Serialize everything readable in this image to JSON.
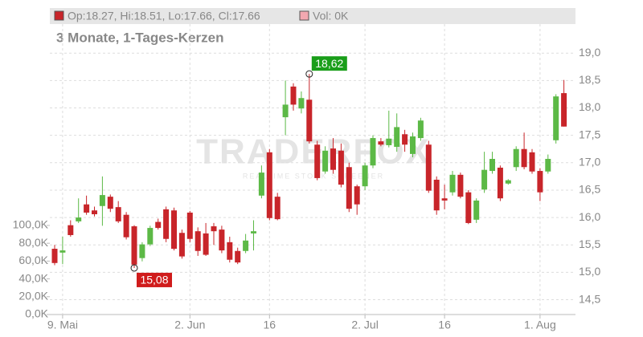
{
  "chart_data": {
    "type": "candlestick",
    "header": {
      "ohlc": "Op:18.27, Hi:18.51, Lo:17.66, Cl:17.66",
      "volume": "Vol: 0K"
    },
    "title": "3 Monate, 1-Tages-Kerzen",
    "watermark": {
      "brand": "TRADERFOX",
      "tagline": "REALTIME STOCK SCREENER"
    },
    "categories": [
      null,
      "9. Mai",
      null,
      null,
      null,
      null,
      null,
      null,
      null,
      null,
      null,
      null,
      null,
      null,
      null,
      null,
      null,
      "2. Jun",
      null,
      null,
      null,
      null,
      null,
      null,
      null,
      null,
      null,
      "16",
      null,
      null,
      null,
      null,
      null,
      null,
      null,
      null,
      null,
      null,
      null,
      "2. Jul",
      null,
      null,
      null,
      null,
      null,
      null,
      null,
      null,
      null,
      "16",
      null,
      null,
      null,
      null,
      null,
      null,
      null,
      null,
      null,
      null,
      null,
      "1. Aug",
      null,
      null,
      null
    ],
    "open": [
      15.43,
      15.36,
      15.86,
      15.93,
      16.24,
      16.13,
      16.21,
      16.38,
      16.19,
      16.05,
      15.84,
      15.26,
      15.51,
      15.92,
      16.15,
      16.13,
      15.72,
      16.09,
      15.75,
      15.71,
      15.84,
      15.78,
      15.55,
      15.39,
      15.39,
      15.71,
      16.4,
      17.19,
      16.38,
      17.83,
      18.39,
      17.99,
      18.15,
      17.33,
      16.84,
      17.26,
      17.22,
      16.92,
      16.57,
      16.57,
      16.95,
      17.39,
      17.32,
      17.29,
      17.52,
      17.16,
      17.45,
      17.33,
      16.69,
      16.35,
      16.46,
      16.78,
      16.46,
      15.96,
      16.51,
      16.85,
      16.91,
      16.62,
      16.92,
      17.25,
      17.19,
      16.85,
      16.84,
      17.41,
      18.27
    ],
    "high": [
      15.5,
      15.65,
      15.95,
      16.35,
      16.4,
      16.2,
      16.75,
      16.42,
      16.3,
      16.1,
      15.86,
      15.55,
      15.85,
      15.98,
      16.2,
      16.18,
      15.78,
      16.12,
      15.82,
      15.9,
      15.9,
      15.85,
      15.65,
      15.45,
      15.7,
      15.95,
      16.95,
      17.25,
      16.45,
      18.5,
      18.45,
      18.3,
      18.62,
      17.4,
      17.3,
      17.45,
      17.35,
      17.0,
      16.6,
      17.0,
      17.5,
      17.45,
      17.95,
      17.9,
      17.6,
      17.55,
      17.82,
      17.4,
      16.75,
      16.6,
      16.85,
      16.82,
      16.5,
      16.35,
      17.2,
      17.2,
      16.95,
      16.7,
      17.3,
      17.55,
      17.25,
      16.9,
      17.15,
      18.25,
      18.51
    ],
    "low": [
      15.13,
      15.15,
      15.65,
      15.9,
      16.05,
      16.02,
      15.85,
      16.1,
      15.9,
      15.6,
      15.08,
      15.2,
      15.48,
      15.78,
      15.55,
      15.4,
      15.25,
      15.55,
      15.3,
      15.3,
      15.5,
      15.35,
      15.18,
      15.15,
      15.35,
      15.4,
      16.35,
      15.95,
      15.95,
      17.5,
      17.95,
      17.9,
      17.35,
      16.68,
      16.8,
      16.8,
      16.55,
      16.1,
      16.05,
      16.5,
      16.9,
      17.3,
      17.28,
      17.2,
      17.2,
      17.1,
      17.4,
      16.45,
      16.05,
      16.15,
      16.4,
      16.35,
      15.88,
      15.9,
      16.45,
      16.8,
      16.3,
      16.6,
      16.85,
      16.88,
      16.8,
      16.3,
      16.8,
      17.35,
      17.66
    ],
    "close": [
      15.17,
      15.4,
      15.68,
      16.0,
      16.09,
      16.06,
      16.41,
      16.16,
      15.93,
      15.64,
      15.14,
      15.51,
      15.81,
      15.81,
      15.61,
      15.43,
      15.29,
      15.61,
      15.39,
      15.32,
      15.75,
      15.4,
      15.23,
      15.18,
      15.58,
      15.75,
      16.82,
      15.99,
      15.97,
      18.06,
      18.06,
      18.18,
      17.39,
      16.72,
      17.22,
      16.87,
      16.6,
      16.16,
      16.24,
      16.95,
      17.45,
      17.33,
      17.44,
      17.65,
      17.33,
      17.48,
      17.77,
      16.49,
      16.13,
      16.31,
      16.78,
      16.38,
      15.9,
      16.31,
      16.87,
      17.07,
      16.35,
      16.68,
      17.25,
      16.92,
      16.84,
      16.46,
      17.07,
      18.21,
      17.66
    ],
    "up_color": "#5cb946",
    "down_color": "#c8252a",
    "annotations": [
      {
        "label": "18,62",
        "value": 18.62,
        "kind": "high",
        "color": "#1a9e1a"
      },
      {
        "label": "15,08",
        "value": 15.08,
        "kind": "low",
        "color": "#d01c1c"
      }
    ],
    "ylim": [
      14.23,
      19.53
    ],
    "yticks": [
      {
        "value": 14.5,
        "label": "14,5"
      },
      {
        "value": 15,
        "label": "15,0"
      },
      {
        "value": 15.5,
        "label": "15,5"
      },
      {
        "value": 16,
        "label": "16,0"
      },
      {
        "value": 16.5,
        "label": "16,5"
      },
      {
        "value": 17,
        "label": "17,0"
      },
      {
        "value": 17.5,
        "label": "17,5"
      },
      {
        "value": 18,
        "label": "18,0"
      },
      {
        "value": 18.5,
        "label": "18,5"
      },
      {
        "value": 19,
        "label": "19,0"
      }
    ],
    "y2lim": [
      0,
      326000
    ],
    "y2ticks": [
      {
        "value": 0,
        "label": "0,0K"
      },
      {
        "value": 20000,
        "label": "20,0K"
      },
      {
        "value": 40000,
        "label": "40,0K"
      },
      {
        "value": 60000,
        "label": "60,0K"
      },
      {
        "value": 80000,
        "label": "80,0K"
      },
      {
        "value": 100000,
        "label": "100,0K"
      }
    ],
    "grid": true
  }
}
